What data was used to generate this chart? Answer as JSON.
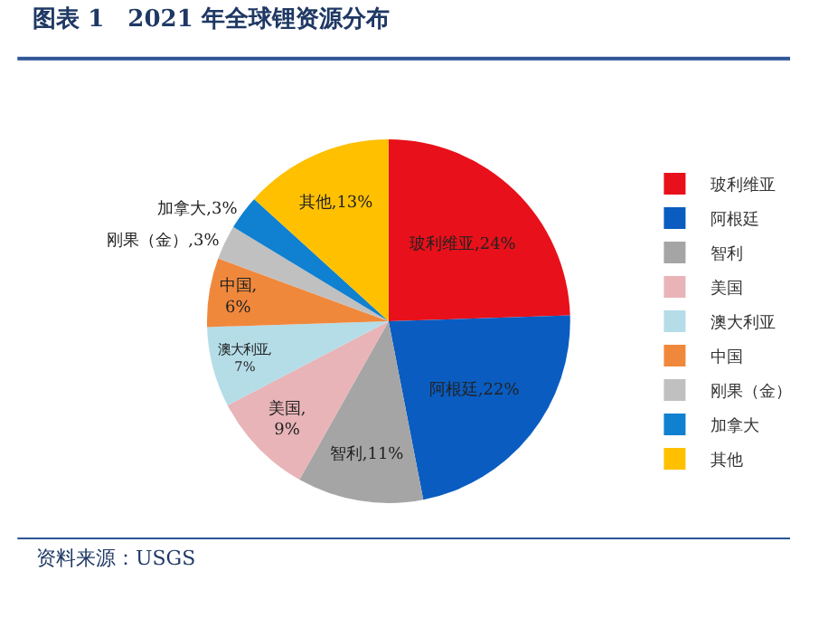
{
  "chart_data": {
    "type": "pie",
    "title": "图表 1　2021 年全球锂资源分布",
    "categories": [
      "玻利维亚",
      "阿根廷",
      "智利",
      "美国",
      "澳大利亚",
      "中国",
      "刚果（金）",
      "加拿大",
      "其他"
    ],
    "values": [
      24,
      22,
      11,
      9,
      7,
      6,
      3,
      3,
      13
    ],
    "value_labels": [
      ",24%",
      ",22%",
      ",11%",
      ",9%",
      ",7%",
      ",6%",
      ",3%",
      ",3%",
      ",13%"
    ],
    "colors": [
      "#e8101a",
      "#0a5cc0",
      "#a5a5a5",
      "#e8b4b8",
      "#b4dde8",
      "#f0883c",
      "#c0c0c0",
      "#1080d0",
      "#ffc000"
    ],
    "legend": "right",
    "annotations": [
      "资料来源：USGS"
    ]
  }
}
